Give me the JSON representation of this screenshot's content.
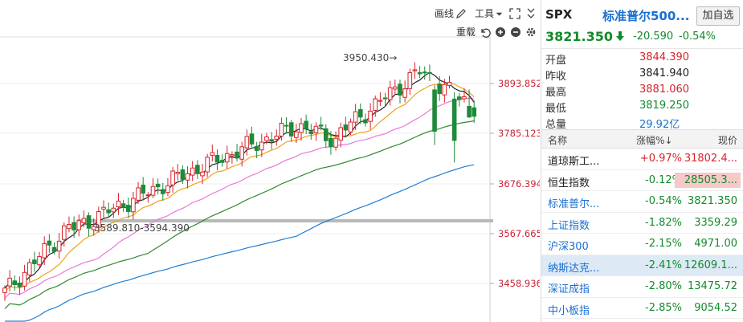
{
  "toolbar": {
    "draw_label": "画线",
    "tools_label": "工具",
    "rebuild_label": "重载"
  },
  "chart": {
    "price_axis": [
      "3893.852",
      "3785.123",
      "3676.394",
      "3567.665",
      "3458.936"
    ],
    "high_annotation": "3950.430→",
    "range_annotation": "3589.810-3594.390",
    "colors": {
      "up": "#d9222a",
      "down": "#1e8a3a",
      "ma5": "#222222",
      "ma10": "#f0a21a",
      "ma20": "#e87ad8",
      "ma30": "#2f8a2f",
      "ma60": "#1f7fd6"
    }
  },
  "quote": {
    "symbol": "SPX",
    "name": "标准普尔500...",
    "add_label": "加自选",
    "last": "3821.350",
    "change": "-20.590",
    "change_pct": "-0.54%",
    "stats": [
      {
        "label": "开盘",
        "value": "3844.390",
        "color": "#d9222a"
      },
      {
        "label": "昨收",
        "value": "3841.940",
        "color": "#222222"
      },
      {
        "label": "最高",
        "value": "3881.060",
        "color": "#d9222a"
      },
      {
        "label": "最低",
        "value": "3819.250",
        "color": "#138a2c"
      },
      {
        "label": "总量",
        "value": "29.92亿",
        "color": "#1a6fd1"
      }
    ]
  },
  "index_table": {
    "headers": {
      "name": "名称",
      "change": "涨幅%↓",
      "price": "现价"
    },
    "rows": [
      {
        "name": "道琼斯工...",
        "change": "+0.97%",
        "price": "31802.4...",
        "name_color": "#222222",
        "chg_color": "#d9222a",
        "price_color": "#d9222a",
        "price_bg": "",
        "selected": false
      },
      {
        "name": "恒生指数",
        "change": "-0.12%",
        "price": "28505.3...",
        "name_color": "#222222",
        "chg_color": "#138a2c",
        "price_color": "#138a2c",
        "price_bg": "#f6c9c9",
        "selected": false
      },
      {
        "name": "标准普尔...",
        "change": "-0.54%",
        "price": "3821.350",
        "name_color": "#1a6fd1",
        "chg_color": "#138a2c",
        "price_color": "#138a2c",
        "price_bg": "",
        "selected": false
      },
      {
        "name": "上证指数",
        "change": "-1.82%",
        "price": "3359.29",
        "name_color": "#1a6fd1",
        "chg_color": "#138a2c",
        "price_color": "#138a2c",
        "price_bg": "",
        "selected": false
      },
      {
        "name": "沪深300",
        "change": "-2.15%",
        "price": "4971.00",
        "name_color": "#1a6fd1",
        "chg_color": "#138a2c",
        "price_color": "#138a2c",
        "price_bg": "",
        "selected": false
      },
      {
        "name": "纳斯达克...",
        "change": "-2.41%",
        "price": "12609.1...",
        "name_color": "#1a6fd1",
        "chg_color": "#138a2c",
        "price_color": "#138a2c",
        "price_bg": "",
        "selected": true
      },
      {
        "name": "深证成指",
        "change": "-2.80%",
        "price": "13475.72",
        "name_color": "#1a6fd1",
        "chg_color": "#138a2c",
        "price_color": "#138a2c",
        "price_bg": "",
        "selected": false
      },
      {
        "name": "中小板指",
        "change": "-2.85%",
        "price": "9054.52",
        "name_color": "#1a6fd1",
        "chg_color": "#138a2c",
        "price_color": "#138a2c",
        "price_bg": "",
        "selected": false
      }
    ]
  }
}
